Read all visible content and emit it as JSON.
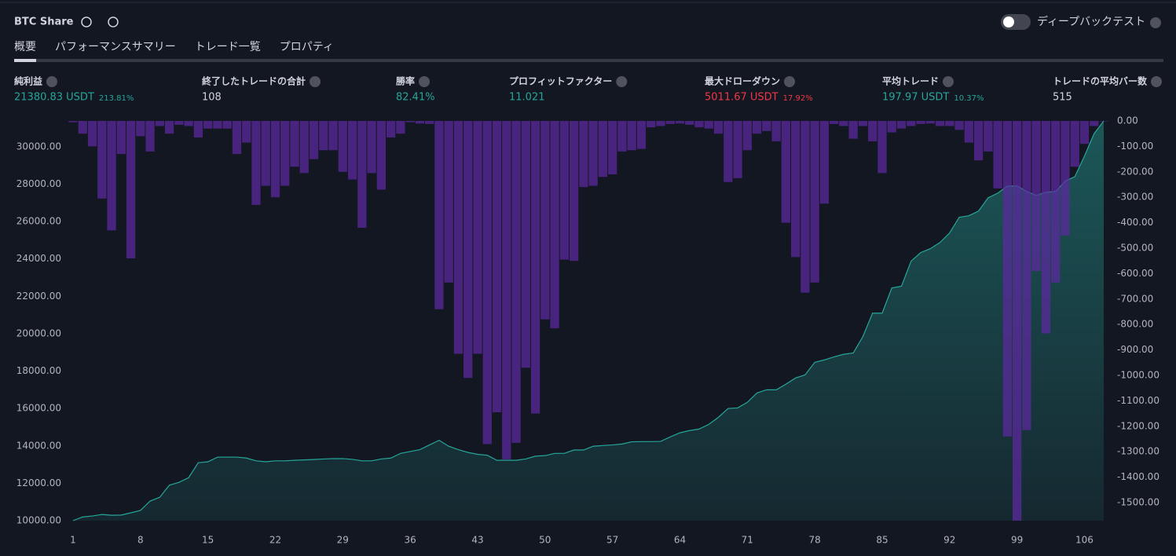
{
  "header": {
    "title": "BTC Share",
    "deep_backtest": "ディープバックテスト"
  },
  "tabs": [
    "概要",
    "パフォーマンスサマリー",
    "トレード一覧",
    "プロパティ"
  ],
  "metrics": [
    {
      "label": "純利益",
      "value": "21380.83 USDT",
      "percent": "213.81%",
      "color": "#26a69a"
    },
    {
      "label": "終了したトレードの合計",
      "value": "108",
      "color": "#d1d4dc"
    },
    {
      "label": "勝率",
      "value": "82.41%",
      "color": "#26a69a"
    },
    {
      "label": "プロフィットファクター",
      "value": "11.021",
      "color": "#26a69a"
    },
    {
      "label": "最大ドローダウン",
      "value": "5011.67 USDT",
      "percent": "17.92%",
      "color": "#f23645"
    },
    {
      "label": "平均トレード",
      "value": "197.97 USDT",
      "percent": "10.37%",
      "color": "#26a69a"
    },
    {
      "label": "トレードの平均バー数",
      "value": "515",
      "color": "#d1d4dc"
    }
  ],
  "chart_data": {
    "type": "line-bar",
    "x": [
      1,
      2,
      3,
      4,
      5,
      6,
      7,
      8,
      9,
      10,
      11,
      12,
      13,
      14,
      15,
      16,
      17,
      18,
      19,
      20,
      21,
      22,
      23,
      24,
      25,
      26,
      27,
      28,
      29,
      30,
      31,
      32,
      33,
      34,
      35,
      36,
      37,
      38,
      39,
      40,
      41,
      42,
      43,
      44,
      45,
      46,
      47,
      48,
      49,
      50,
      51,
      52,
      53,
      54,
      55,
      56,
      57,
      58,
      59,
      60,
      61,
      62,
      63,
      64,
      65,
      66,
      67,
      68,
      69,
      70,
      71,
      72,
      73,
      74,
      75,
      76,
      77,
      78,
      79,
      80,
      81,
      82,
      83,
      84,
      85,
      86,
      87,
      88,
      89,
      90,
      91,
      92,
      93,
      94,
      95,
      96,
      97,
      98,
      99,
      100,
      101,
      102,
      103,
      104,
      105,
      106,
      107,
      108
    ],
    "xlim": [
      1,
      108
    ],
    "xticks": [
      1,
      8,
      15,
      22,
      29,
      36,
      43,
      50,
      57,
      64,
      71,
      78,
      85,
      92,
      99,
      106
    ],
    "ylim": [
      10000,
      31380.83
    ],
    "yticks": [
      {
        "value": 10000,
        "label": "10000.00"
      },
      {
        "value": 12000,
        "label": "12000.00"
      },
      {
        "value": 14000,
        "label": "14000.00"
      },
      {
        "value": 16000,
        "label": "16000.00"
      },
      {
        "value": 18000,
        "label": "18000.00"
      },
      {
        "value": 20000,
        "label": "20000.00"
      },
      {
        "value": 22000,
        "label": "22000.00"
      },
      {
        "value": 24000,
        "label": "24000.00"
      },
      {
        "value": 26000,
        "label": "26000.00"
      },
      {
        "value": 28000,
        "label": "28000.00"
      },
      {
        "value": 30000,
        "label": "30000.00"
      }
    ],
    "y2lim": [
      -1571,
      0
    ],
    "y2ticks": [
      {
        "value": 0,
        "label": "0.00"
      },
      {
        "value": -100,
        "label": "-100.00"
      },
      {
        "value": -200,
        "label": "-200.00"
      },
      {
        "value": -300,
        "label": "-300.00"
      },
      {
        "value": -400,
        "label": "-400.00"
      },
      {
        "value": -500,
        "label": "-500.00"
      },
      {
        "value": -600,
        "label": "-600.00"
      },
      {
        "value": -700,
        "label": "-700.00"
      },
      {
        "value": -800,
        "label": "-800.00"
      },
      {
        "value": -900,
        "label": "-900.00"
      },
      {
        "value": -1000,
        "label": "-1000.00"
      },
      {
        "value": -1100,
        "label": "-1100.00"
      },
      {
        "value": -1200,
        "label": "-1200.00"
      },
      {
        "value": -1300,
        "label": "-1300.00"
      },
      {
        "value": -1400,
        "label": "-1400.00"
      },
      {
        "value": -1500,
        "label": "-1500.00"
      }
    ],
    "series": [
      {
        "type": "area",
        "color": "#26a69a",
        "values": [
          10000,
          10200,
          10250,
          10330,
          10290,
          10300,
          10420,
          10550,
          11050,
          11250,
          11900,
          12050,
          12300,
          13100,
          13150,
          13400,
          13400,
          13400,
          13350,
          13200,
          13150,
          13200,
          13200,
          13230,
          13250,
          13270,
          13300,
          13320,
          13320,
          13280,
          13200,
          13200,
          13300,
          13350,
          13600,
          13700,
          13800,
          14050,
          14300,
          13980,
          13800,
          13650,
          13550,
          13500,
          13230,
          13230,
          13230,
          13300,
          13450,
          13480,
          13600,
          13600,
          13780,
          13780,
          13980,
          14020,
          14050,
          14100,
          14220,
          14230,
          14230,
          14240,
          14480,
          14700,
          14820,
          14900,
          15150,
          15530,
          16000,
          16030,
          16330,
          16830,
          17000,
          17000,
          17300,
          17630,
          17800,
          18470,
          18600,
          18760,
          18900,
          18970,
          19850,
          21100,
          21100,
          22450,
          22540,
          23880,
          24340,
          24550,
          24880,
          25390,
          26230,
          26310,
          26560,
          27270,
          27520,
          27900,
          27900,
          27610,
          27400,
          27570,
          27610,
          28160,
          28400,
          29500,
          30700,
          31380.83
        ]
      },
      {
        "type": "bar",
        "axis": "y2",
        "color": "#5b2a9e",
        "values": [
          -5,
          -50,
          -100,
          -305,
          -430,
          -130,
          -540,
          -60,
          -120,
          -20,
          -50,
          -15,
          -20,
          -65,
          -30,
          -30,
          -30,
          -130,
          -85,
          -330,
          -255,
          -300,
          -255,
          -180,
          -205,
          -150,
          -115,
          -115,
          -200,
          -230,
          -420,
          -205,
          -270,
          -65,
          -50,
          -5,
          -10,
          -12,
          -740,
          -635,
          -915,
          -1010,
          -915,
          -1270,
          -1145,
          -1330,
          -1265,
          -970,
          -1150,
          -780,
          -815,
          -545,
          -550,
          -260,
          -255,
          -220,
          -210,
          -120,
          -115,
          -110,
          -25,
          -20,
          -12,
          -10,
          -15,
          -25,
          -30,
          -50,
          -240,
          -225,
          -115,
          -50,
          -40,
          -80,
          -400,
          -535,
          -675,
          -635,
          -325,
          -12,
          -20,
          -70,
          -20,
          -80,
          -205,
          -45,
          -30,
          -20,
          -12,
          -10,
          -20,
          -20,
          -35,
          -85,
          -155,
          -120,
          -265,
          -1240,
          -1571,
          -1215,
          -590,
          -835,
          -635,
          -450,
          -180,
          -90,
          -20,
          0
        ]
      }
    ]
  }
}
